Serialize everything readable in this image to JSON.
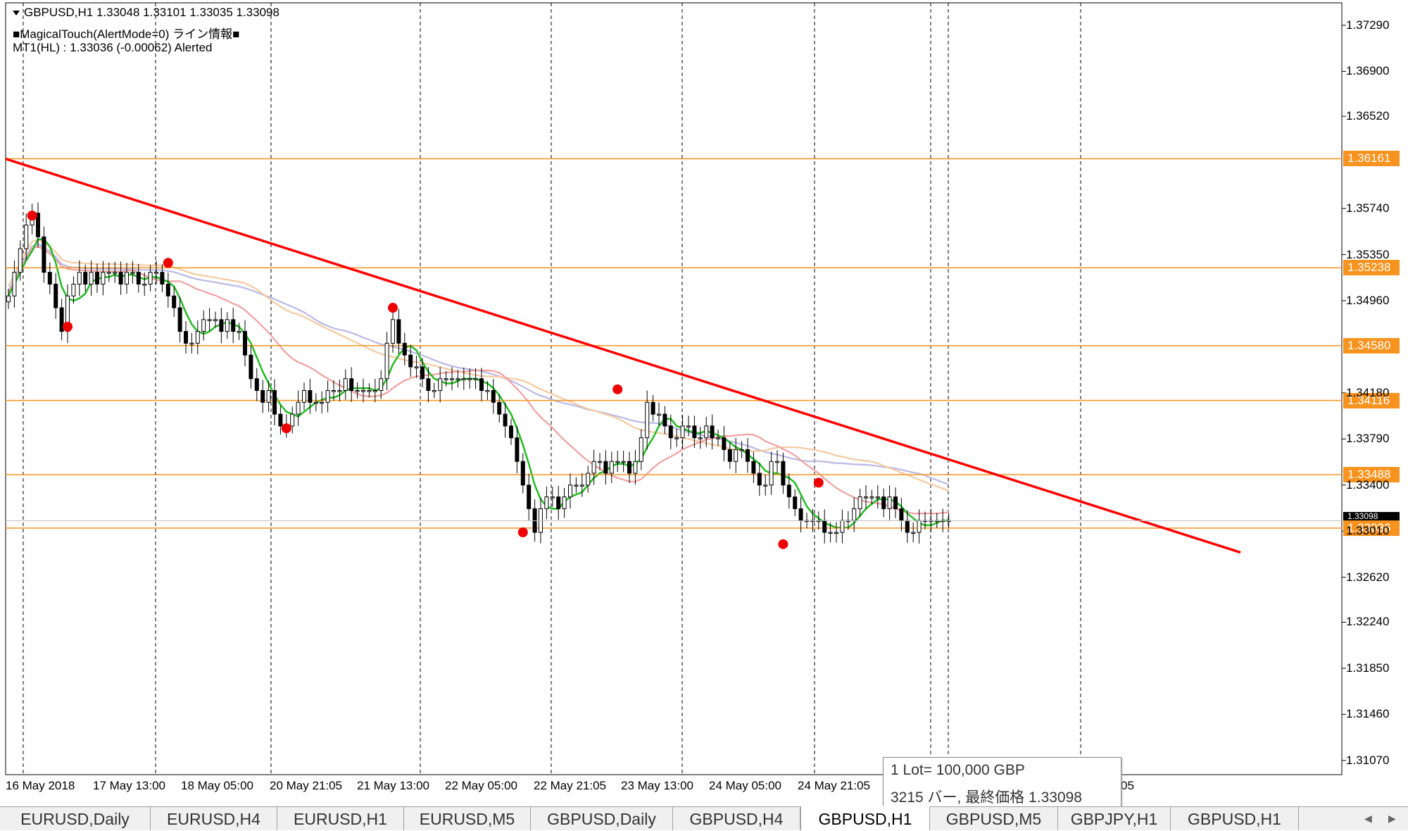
{
  "chart_header": {
    "symbol_line": "GBPUSD,H1  1.33048 1.33101 1.33035 1.33098",
    "indicator_line": "■MagicalTouch(AlertMode=0) ライン情報■",
    "mt1_line": "MT1(HL) : 1.33036 (-0.00062)  Alerted"
  },
  "colors": {
    "level_line": "#f7931e",
    "trendline": "#ff0000",
    "ma_fast": "#22bb22",
    "ma_slow1": "#f0a0a0",
    "ma_slow2": "#f5c9a0",
    "ma_slow3": "#b9b9e6",
    "candle_bull": "#000000",
    "candle_bear": "#000000",
    "swing_marker": "#ee0000"
  },
  "chart_data": {
    "type": "candlestick",
    "symbol": "GBPUSD",
    "timeframe": "H1",
    "ylim": [
      1.3095,
      1.3748
    ],
    "y_ticks": [
      "1.37290",
      "1.36900",
      "1.36520",
      "1.35740",
      "1.35350",
      "1.34960",
      "1.34180",
      "1.33790",
      "1.33400",
      "1.33010",
      "1.32620",
      "1.32240",
      "1.31850",
      "1.31460",
      "1.31070"
    ],
    "x_labels": [
      "16 May 2018",
      "17 May 13:00",
      "18 May 05:00",
      "20 May 21:05",
      "21 May 13:00",
      "22 May 05:00",
      "22 May 21:05",
      "23 May 13:00",
      "24 May 05:00",
      "24 May 21:05",
      "05"
    ],
    "price_levels": [
      {
        "label": "1.36161",
        "value": 1.36161
      },
      {
        "label": "1.35238",
        "value": 1.35238
      },
      {
        "label": "1.34580",
        "value": 1.3458
      },
      {
        "label": "1.34116",
        "value": 1.34116
      },
      {
        "label": "1.33488",
        "value": 1.33488
      },
      {
        "label": "1.33036",
        "value": 1.33036
      }
    ],
    "current_price": "1.33098",
    "trendline": {
      "start": [
        0,
        1.3616
      ],
      "end": [
        180,
        1.3283
      ]
    },
    "close_series": [
      1.35,
      1.352,
      1.354,
      1.356,
      1.357,
      1.355,
      1.352,
      1.351,
      1.349,
      1.347,
      1.35,
      1.351,
      1.352,
      1.351,
      1.352,
      1.351,
      1.352,
      1.352,
      1.352,
      1.351,
      1.352,
      1.352,
      1.351,
      1.351,
      1.352,
      1.352,
      1.351,
      1.35,
      1.349,
      1.347,
      1.346,
      1.346,
      1.347,
      1.348,
      1.348,
      1.348,
      1.347,
      1.348,
      1.347,
      1.347,
      1.345,
      1.343,
      1.342,
      1.341,
      1.342,
      1.34,
      1.339,
      1.339,
      1.34,
      1.341,
      1.342,
      1.341,
      1.341,
      1.341,
      1.342,
      1.342,
      1.342,
      1.343,
      1.342,
      1.342,
      1.342,
      1.342,
      1.342,
      1.343,
      1.346,
      1.348,
      1.346,
      1.345,
      1.344,
      1.344,
      1.343,
      1.342,
      1.342,
      1.343,
      1.343,
      1.343,
      1.343,
      1.343,
      1.343,
      1.343,
      1.342,
      1.342,
      1.341,
      1.34,
      1.339,
      1.338,
      1.336,
      1.334,
      1.332,
      1.33,
      1.332,
      1.333,
      1.333,
      1.332,
      1.333,
      1.334,
      1.334,
      1.334,
      1.335,
      1.336,
      1.336,
      1.335,
      1.336,
      1.336,
      1.336,
      1.335,
      1.336,
      1.338,
      1.341,
      1.34,
      1.34,
      1.339,
      1.338,
      1.338,
      1.339,
      1.339,
      1.338,
      1.338,
      1.339,
      1.338,
      1.338,
      1.337,
      1.336,
      1.337,
      1.337,
      1.336,
      1.335,
      1.334,
      1.334,
      1.336,
      1.336,
      1.334,
      1.333,
      1.332,
      1.331,
      1.331,
      1.331,
      1.331,
      1.33,
      1.33,
      1.33,
      1.331,
      1.331,
      1.332,
      1.333,
      1.333,
      1.333,
      1.333,
      1.332,
      1.333,
      1.332,
      1.331,
      1.33,
      1.33,
      1.331,
      1.331,
      1.331,
      1.331,
      1.331,
      1.331
    ],
    "moving_averages": [
      {
        "color_key": "ma_fast",
        "period_hint": "short"
      },
      {
        "color_key": "ma_slow1",
        "period_hint": "medium"
      },
      {
        "color_key": "ma_slow2",
        "period_hint": "long"
      },
      {
        "color_key": "ma_slow3",
        "period_hint": "long"
      }
    ],
    "swing_points": [
      {
        "bar": 4,
        "type": "high",
        "value": 1.3568
      },
      {
        "bar": 10,
        "type": "low",
        "value": 1.3474
      },
      {
        "bar": 27,
        "type": "high",
        "value": 1.3528
      },
      {
        "bar": 47,
        "type": "low",
        "value": 1.3388
      },
      {
        "bar": 65,
        "type": "high",
        "value": 1.349
      },
      {
        "bar": 87,
        "type": "low",
        "value": 1.33
      },
      {
        "bar": 103,
        "type": "high",
        "value": 1.3421
      },
      {
        "bar": 131,
        "type": "low",
        "value": 1.329
      },
      {
        "bar": 137,
        "type": "high",
        "value": 1.3342
      }
    ]
  },
  "tooltip": {
    "line1": "1 Lot= 100,000 GBP",
    "line2": "3215 バー, 最終価格 1.33098"
  },
  "tabs": [
    {
      "label": "EURUSD,Daily",
      "active": false
    },
    {
      "label": "EURUSD,H4",
      "active": false
    },
    {
      "label": "EURUSD,H1",
      "active": false
    },
    {
      "label": "EURUSD,M5",
      "active": false
    },
    {
      "label": "GBPUSD,Daily",
      "active": false
    },
    {
      "label": "GBPUSD,H4",
      "active": false
    },
    {
      "label": "GBPUSD,H1",
      "active": true
    },
    {
      "label": "GBPUSD,M5",
      "active": false
    },
    {
      "label": "GBPJPY,H1",
      "active": false
    },
    {
      "label": "GBPUSD,H1",
      "active": false
    }
  ],
  "tab_nav": {
    "left": "◀",
    "right": "▶"
  }
}
